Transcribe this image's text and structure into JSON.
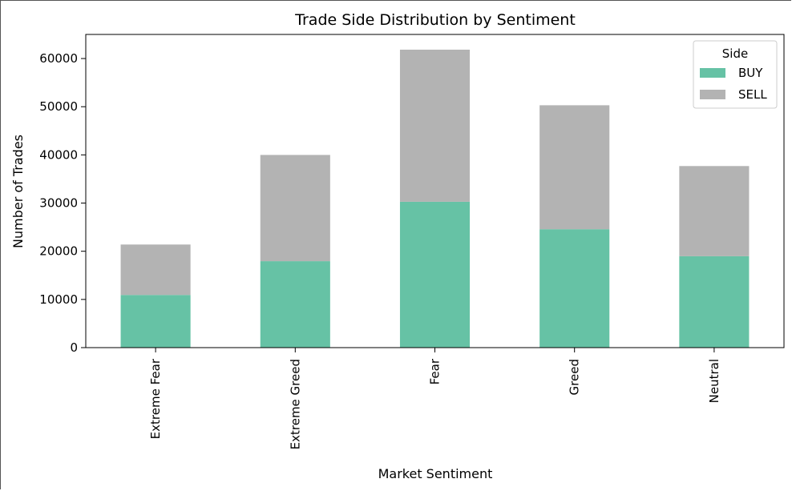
{
  "chart_data": {
    "type": "bar",
    "stacked": true,
    "title": "Trade Side Distribution by Sentiment",
    "xlabel": "Market Sentiment",
    "ylabel": "Number of Trades",
    "categories": [
      "Extreme Fear",
      "Extreme Greed",
      "Fear",
      "Greed",
      "Neutral"
    ],
    "series": [
      {
        "name": "BUY",
        "color": "#66c2a5",
        "values": [
          10935,
          17940,
          30270,
          24576,
          18969
        ]
      },
      {
        "name": "SELL",
        "color": "#b3b3b3",
        "values": [
          10465,
          22052,
          31567,
          25727,
          18717
        ]
      }
    ],
    "ylim": [
      0,
      65000
    ],
    "yticks": [
      0,
      10000,
      20000,
      30000,
      40000,
      50000,
      60000
    ],
    "ytick_labels": [
      "0",
      "10000",
      "20000",
      "30000",
      "40000",
      "50000",
      "60000"
    ],
    "grid": false,
    "legend": {
      "title": "Side",
      "placement": "top-right"
    }
  }
}
